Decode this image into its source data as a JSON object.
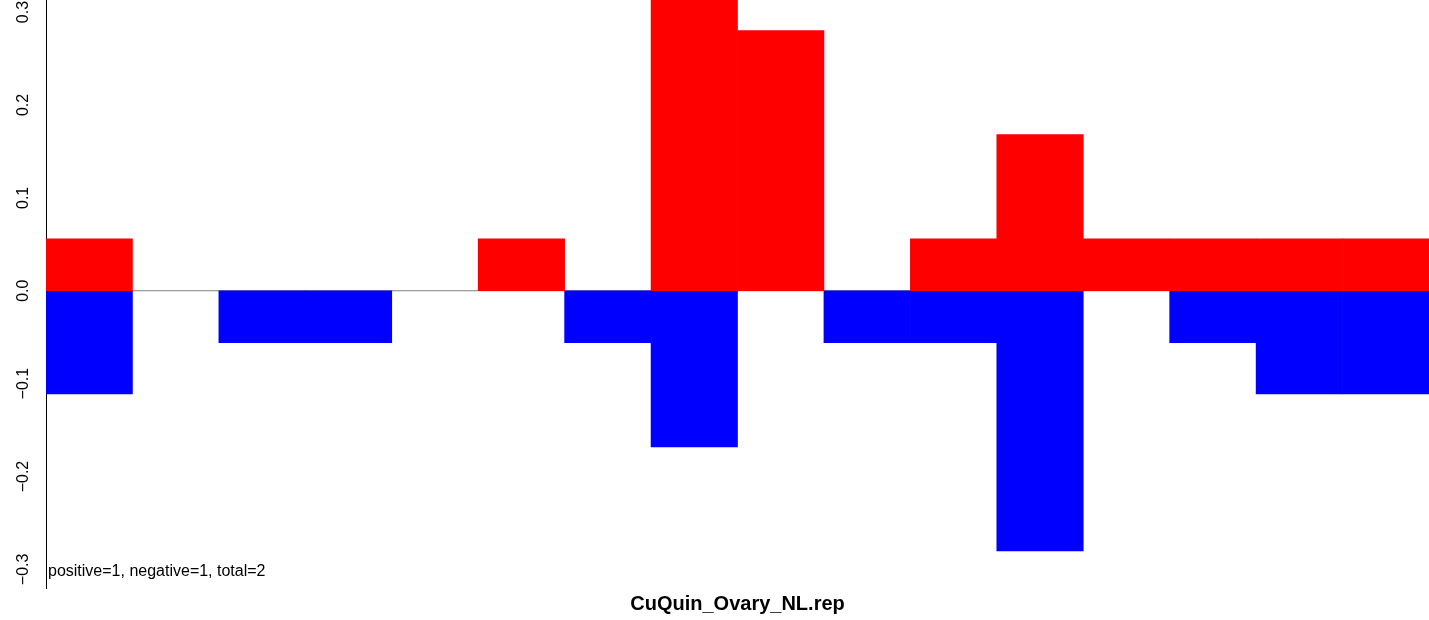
{
  "chart_data": {
    "type": "bar",
    "stacked": true,
    "xlabel": "CuQuin_Ovary_NL.rep",
    "categories": [
      null,
      null,
      null,
      null,
      null,
      null,
      null,
      null,
      null,
      null,
      null,
      null,
      null,
      null,
      null,
      null
    ],
    "series": [
      {
        "color": "#ff0000",
        "values": [
          0.056,
          null,
          null,
          null,
          null,
          0.056,
          null,
          0.313,
          0.28,
          null,
          0.056,
          0.168,
          0.056,
          0.056,
          0.056,
          0.056
        ]
      },
      {
        "color": "#0000ff",
        "values": [
          -0.111,
          null,
          -0.056,
          -0.056,
          null,
          null,
          -0.056,
          -0.168,
          null,
          -0.056,
          -0.056,
          -0.28,
          null,
          -0.056,
          -0.111,
          -0.111
        ]
      }
    ],
    "ylim": [
      -0.32,
      0.313
    ],
    "yticks": [
      {
        "value": -0.3,
        "label": "−0.3"
      },
      {
        "value": -0.2,
        "label": "−0.2"
      },
      {
        "value": -0.1,
        "label": "−0.1"
      },
      {
        "value": 0,
        "label": "0.0"
      },
      {
        "value": 0.1,
        "label": "0.1"
      },
      {
        "value": 0.2,
        "label": "0.2"
      },
      {
        "value": 0.3,
        "label": "0.3"
      }
    ],
    "ref_lines": [
      {
        "axis": "y",
        "value": 0,
        "color": "#808080"
      }
    ],
    "annotations": [
      "positive=1, negative=1, total=2"
    ],
    "tick_labels": "y",
    "grid": false,
    "legend": false
  }
}
